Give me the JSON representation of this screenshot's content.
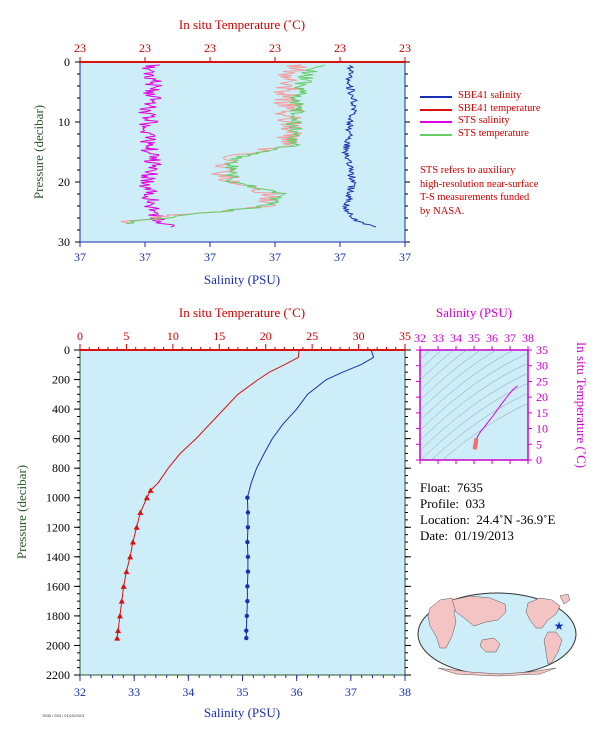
{
  "colors": {
    "plot_bg": "#cdeef8",
    "salinity": "#1a2fb4",
    "temperature": "#dd1111",
    "sts_salinity": "#e000e0",
    "sts_temperature": "#66cc66",
    "axis_temperature": "#cc0000",
    "axis_salinity": "#1a2fb4",
    "axis_pressure": "#2e5a2e",
    "inset_axis": "#cc00cc"
  },
  "top_chart": {
    "title_top": "In situ Temperature (˚C)",
    "title_bottom": "Salinity (PSU)",
    "ylabel": "Pressure (decibar)",
    "top_ticks": [
      "23",
      "23",
      "23",
      "23",
      "23",
      "23"
    ],
    "bottom_ticks": [
      "37",
      "37",
      "37",
      "37",
      "37",
      "37"
    ],
    "y_ticks": [
      "0",
      "10",
      "20",
      "30"
    ]
  },
  "legend": [
    {
      "label": "SBE41 salinity",
      "color_key": "salinity"
    },
    {
      "label": "SBE41 temperature",
      "color_key": "temperature"
    },
    {
      "label": "STS salinity",
      "color_key": "sts_salinity"
    },
    {
      "label": "STS temperature",
      "color_key": "sts_temperature"
    }
  ],
  "note_lines": [
    "STS refers to auxiliary",
    "high-resolution near-surface",
    "T-S measurements funded",
    "by NASA."
  ],
  "main_chart": {
    "title_top": "In situ Temperature (˚C)",
    "title_bottom": "Salinity (PSU)",
    "ylabel": "Pressure (decibar)",
    "top_ticks": [
      "0",
      "5",
      "10",
      "15",
      "20",
      "25",
      "30",
      "35"
    ],
    "bottom_ticks": [
      "32",
      "33",
      "34",
      "35",
      "36",
      "37",
      "38"
    ],
    "y_ticks": [
      "0",
      "200",
      "400",
      "600",
      "800",
      "1000",
      "1200",
      "1400",
      "1600",
      "1800",
      "2000",
      "2200"
    ]
  },
  "inset_chart": {
    "title_top": "Salinity (PSU)",
    "ylabel": "In situ Temperature (˚C)",
    "top_ticks": [
      "32",
      "33",
      "34",
      "35",
      "36",
      "37",
      "38"
    ],
    "y_ticks": [
      "0",
      "5",
      "10",
      "15",
      "20",
      "25",
      "30",
      "35"
    ]
  },
  "info": {
    "float_label": "Float:",
    "float_value": "7635",
    "profile_label": "Profile:",
    "profile_value": "033",
    "location_label": "Location:",
    "location_value": "24.4˚N  -36.9˚E",
    "date_label": "Date:",
    "date_value": "01/19/2013"
  },
  "footer_id": "7635 / 033 / 01/19/2013",
  "chart_data": [
    {
      "type": "line",
      "name": "near-surface profile",
      "xlabel": "Salinity (PSU)",
      "x2label": "In situ Temperature (˚C)",
      "ylabel": "Pressure (decibar)",
      "ylim": [
        30,
        0
      ],
      "series": [
        {
          "name": "SBE41 salinity",
          "note": "blue trace near right edge",
          "p": [
            0.5,
            2,
            4,
            6,
            8,
            10,
            12,
            14,
            16,
            18,
            20,
            22,
            24,
            26,
            27.5
          ],
          "x_frac": [
            0.83,
            0.83,
            0.83,
            0.84,
            0.84,
            0.83,
            0.83,
            0.82,
            0.82,
            0.83,
            0.84,
            0.83,
            0.82,
            0.83,
            0.9
          ]
        },
        {
          "name": "SBE41 temperature",
          "note": "red line at surface",
          "p": [
            0.2
          ],
          "x_frac": [
            1.0
          ]
        },
        {
          "name": "STS salinity",
          "p": [
            0.5,
            2,
            4,
            6,
            8,
            10,
            12,
            14,
            16,
            18,
            20,
            22,
            24,
            26,
            27.5
          ],
          "x_frac": [
            0.22,
            0.22,
            0.23,
            0.22,
            0.21,
            0.21,
            0.21,
            0.21,
            0.22,
            0.22,
            0.21,
            0.21,
            0.22,
            0.24,
            0.27
          ]
        },
        {
          "name": "STS temperature",
          "p": [
            0.5,
            2,
            4,
            6,
            8,
            10,
            12,
            14,
            16,
            18,
            20,
            22,
            24,
            26,
            27
          ],
          "x_frac": [
            0.66,
            0.65,
            0.64,
            0.64,
            0.64,
            0.64,
            0.64,
            0.63,
            0.45,
            0.44,
            0.45,
            0.6,
            0.57,
            0.22,
            0.1
          ]
        }
      ]
    },
    {
      "type": "line",
      "name": "deep profile",
      "xlabel": "Salinity (PSU)",
      "x2label": "In situ Temperature (˚C)",
      "ylabel": "Pressure (decibar)",
      "xlim": [
        32,
        38
      ],
      "x2lim": [
        0,
        35
      ],
      "ylim": [
        2200,
        0
      ],
      "series": [
        {
          "name": "Salinity",
          "pressure": [
            5,
            50,
            100,
            150,
            200,
            300,
            400,
            500,
            600,
            700,
            800,
            900,
            1000,
            1100,
            1200,
            1300,
            1400,
            1500,
            1600,
            1700,
            1800,
            1900,
            1950
          ],
          "values": [
            37.38,
            37.42,
            37.18,
            36.85,
            36.55,
            36.2,
            36.0,
            35.75,
            35.55,
            35.4,
            35.26,
            35.16,
            35.09,
            35.1,
            35.1,
            35.09,
            35.1,
            35.1,
            35.09,
            35.09,
            35.08,
            35.07,
            35.07
          ]
        },
        {
          "name": "In situ Temperature",
          "pressure": [
            5,
            50,
            100,
            150,
            200,
            300,
            400,
            500,
            600,
            700,
            800,
            900,
            950,
            1000,
            1100,
            1200,
            1300,
            1400,
            1500,
            1600,
            1700,
            1800,
            1900,
            1950
          ],
          "values": [
            23.6,
            23.5,
            22.0,
            20.4,
            19.2,
            17.0,
            15.5,
            14.0,
            12.5,
            10.8,
            9.5,
            8.4,
            7.6,
            7.2,
            6.5,
            6.1,
            5.7,
            5.4,
            5.0,
            4.7,
            4.5,
            4.3,
            4.1,
            4.0
          ]
        }
      ]
    },
    {
      "type": "scatter",
      "name": "T-S diagram",
      "xlabel": "Salinity (PSU)",
      "ylabel": "In situ Temperature (˚C)",
      "xlim": [
        32,
        38
      ],
      "ylim": [
        0,
        35
      ],
      "series": [
        {
          "name": "profile",
          "salinity": [
            35.05,
            35.08,
            35.1,
            35.12,
            35.2,
            35.35,
            35.55,
            35.8,
            36.05,
            36.3,
            36.55,
            36.85,
            37.15,
            37.42
          ],
          "temperature": [
            4.0,
            4.6,
            5.5,
            6.3,
            7.5,
            8.9,
            10.3,
            12.2,
            14.0,
            16.0,
            18.0,
            20.2,
            22.3,
            23.6
          ]
        }
      ]
    }
  ]
}
